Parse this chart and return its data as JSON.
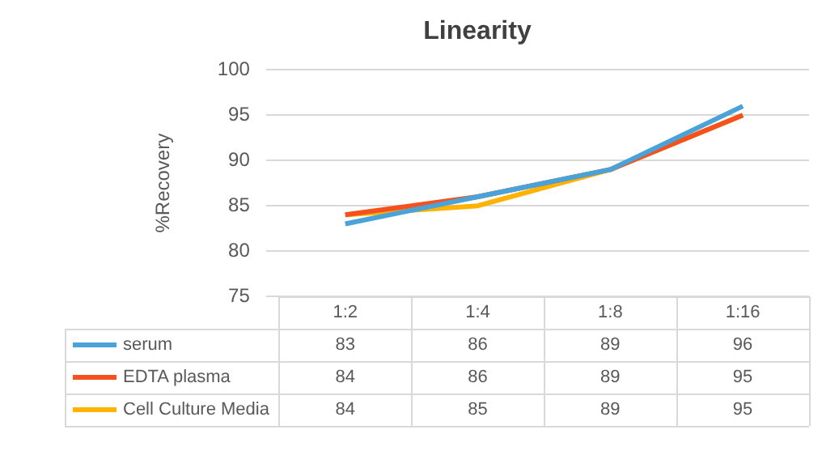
{
  "chart_data": {
    "type": "line",
    "title": "Linearity",
    "ylabel": "%Recovery",
    "categories": [
      "1:2",
      "1:4",
      "1:8",
      "1:16"
    ],
    "series": [
      {
        "name": "serum",
        "color": "#4aa3d8",
        "values": [
          83,
          86,
          89,
          96
        ]
      },
      {
        "name": "EDTA plasma",
        "color": "#f4511e",
        "values": [
          84,
          86,
          89,
          95
        ]
      },
      {
        "name": "Cell Culture Media",
        "color": "#ffb300",
        "values": [
          84,
          85,
          89,
          95
        ]
      }
    ],
    "ylim": [
      75,
      100
    ],
    "yticks": [
      75,
      80,
      85,
      90,
      95,
      100
    ],
    "grid": "y",
    "legend": "bottom",
    "data_labels": true,
    "marker": "none",
    "line_style": "solid"
  }
}
